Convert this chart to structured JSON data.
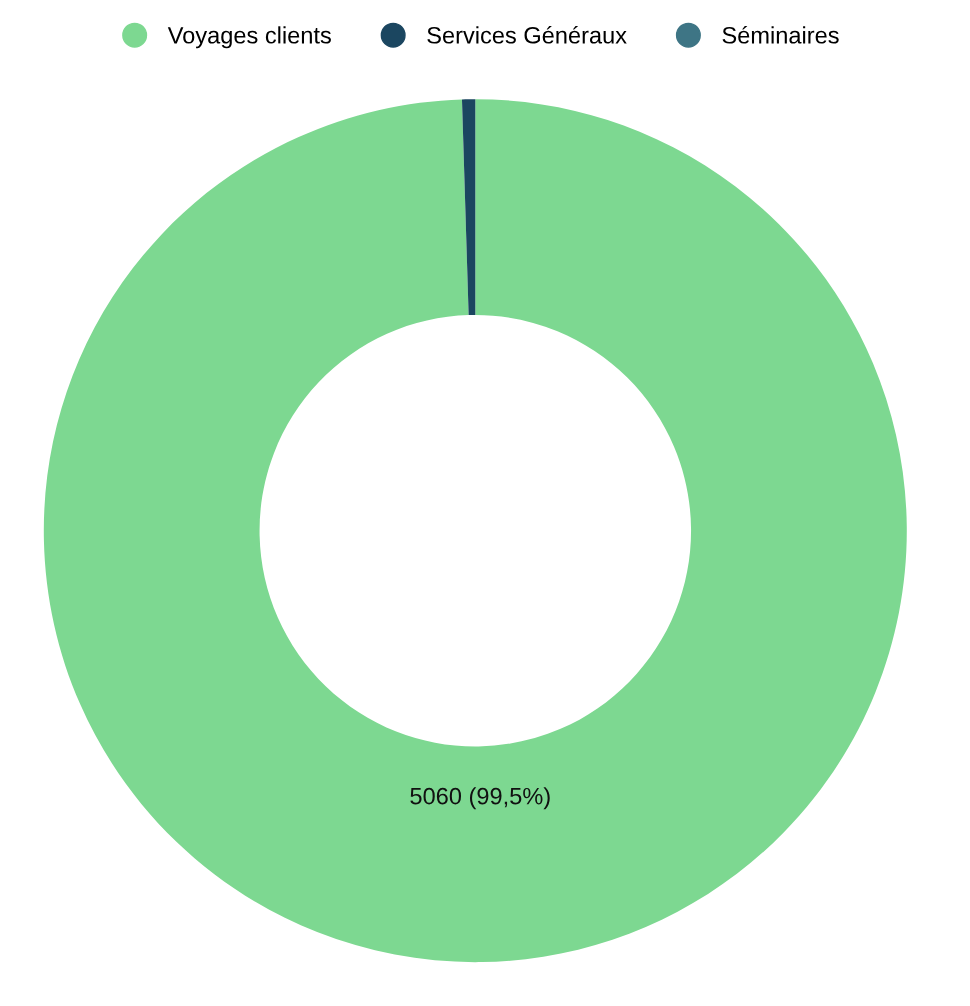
{
  "chart_data": {
    "type": "donut",
    "categories": [
      "Voyages clients",
      "Services Généraux",
      "Séminaires"
    ],
    "values": [
      5060,
      25,
      0
    ],
    "colors": [
      "#7dd891",
      "#1b4660",
      "#3e7585"
    ],
    "value_labels": [
      "5060 (99,5%)",
      null,
      null
    ],
    "legend": "top"
  }
}
